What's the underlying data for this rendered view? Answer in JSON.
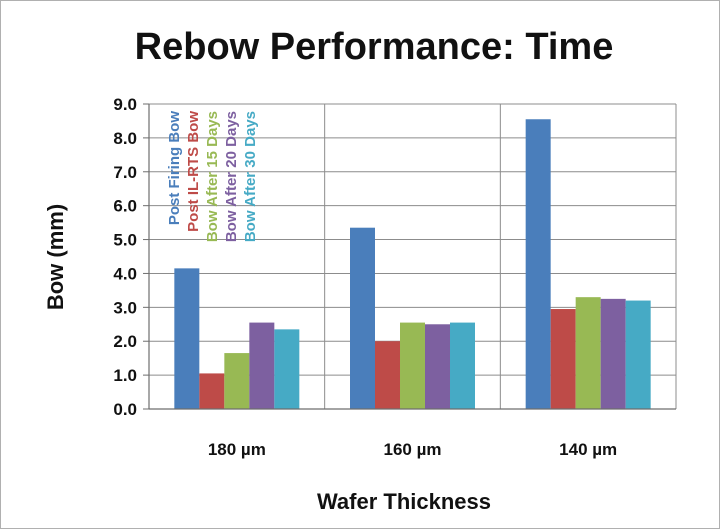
{
  "chart_data": {
    "type": "bar",
    "title": "Rebow Performance: Time",
    "xlabel": "Wafer Thickness",
    "ylabel": "Bow (mm)",
    "categories": [
      "180 µm",
      "160 µm",
      "140 µm"
    ],
    "ylim": [
      0,
      9
    ],
    "yticks": [
      "0.0",
      "1.0",
      "2.0",
      "3.0",
      "4.0",
      "5.0",
      "6.0",
      "7.0",
      "8.0",
      "9.0"
    ],
    "grid": true,
    "legend_placement": "inside top-left, vertical text",
    "series": [
      {
        "name": "Post Firing Bow",
        "color": "#4a7ebb",
        "values": [
          4.15,
          5.35,
          8.55
        ]
      },
      {
        "name": "Post IL-RTS Bow",
        "color": "#be4b48",
        "values": [
          1.05,
          2.0,
          2.95
        ]
      },
      {
        "name": "Bow After 15 Days",
        "color": "#98b954",
        "values": [
          1.65,
          2.55,
          3.3
        ]
      },
      {
        "name": "Bow After 20 Days",
        "color": "#7d60a0",
        "values": [
          2.55,
          2.5,
          3.25
        ]
      },
      {
        "name": "Bow After 30 Days",
        "color": "#46aac5",
        "values": [
          2.35,
          2.55,
          3.2
        ]
      }
    ]
  }
}
